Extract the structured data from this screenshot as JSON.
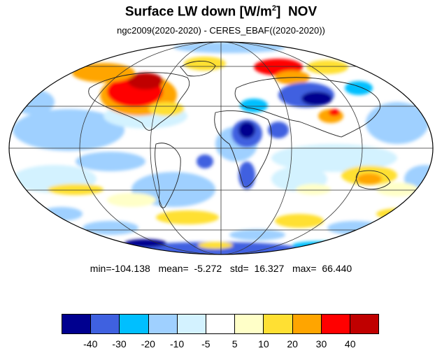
{
  "title": {
    "main": "Surface LW down [W/m",
    "sup": "2",
    "close": "]",
    "month": "NOV"
  },
  "subtitle": "ngc2009(2020-2020) - CERES_EBAF((2020-2020))",
  "stats": {
    "min": "-104.138",
    "mean": "-5.272",
    "std": "16.327",
    "max": "66.440"
  },
  "colorbar": {
    "colors": [
      "#00008f",
      "#3f61e0",
      "#00bfff",
      "#9fd0ff",
      "#d3f2ff",
      "#ffffff",
      "#ffffc8",
      "#ffe033",
      "#ffa500",
      "#ff0000",
      "#c00000"
    ],
    "labels": [
      "-40",
      "-30",
      "-20",
      "-10",
      "-5",
      "5",
      "10",
      "20",
      "30",
      "40"
    ]
  }
}
